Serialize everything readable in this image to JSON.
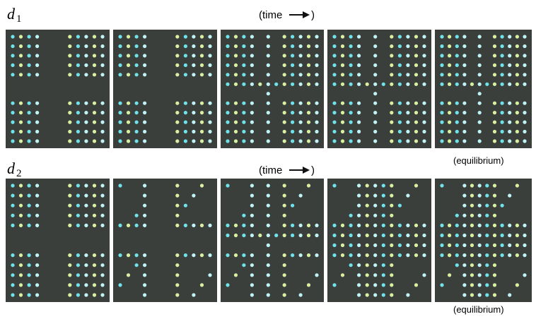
{
  "rows": [
    {
      "label": "d",
      "subscript": "1",
      "caption": "(time",
      "caption_end": ")",
      "note": "(equilibrium)"
    },
    {
      "label": "d",
      "subscript": "2",
      "caption": "(time",
      "caption_end": ")",
      "note": "(equilibrium)"
    }
  ]
}
